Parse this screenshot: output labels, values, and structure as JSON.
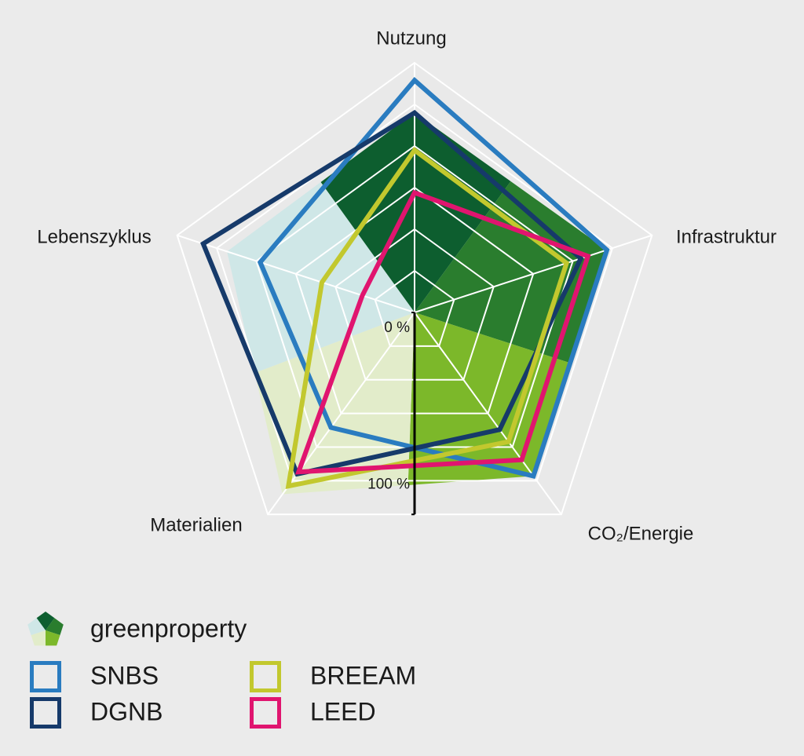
{
  "chart_data": {
    "type": "radar",
    "axes": [
      "Nutzung",
      "Infrastruktur",
      "CO₂/Energie",
      "Materialien",
      "Lebenszyklus"
    ],
    "ylim": [
      0,
      100
    ],
    "yticks": [
      {
        "value": 0,
        "label": "0 %"
      },
      {
        "value": 100,
        "label": "100 %"
      }
    ],
    "grid_rings": 6,
    "series": [
      {
        "name": "greenproperty",
        "fill": true,
        "colors": [
          "#0d5e2f",
          "#2a7d2e",
          "#7cb82a",
          "#e2ecca",
          "#cfe7e7"
        ],
        "values": [
          80,
          81,
          81,
          90,
          79
        ]
      },
      {
        "name": "SNBS",
        "color": "#2a7cc0",
        "values": [
          93,
          81,
          81,
          57,
          65
        ]
      },
      {
        "name": "DGNB",
        "color": "#163a6a",
        "values": [
          80,
          70,
          58,
          80,
          89
        ]
      },
      {
        "name": "BREEAM",
        "color": "#c2c82e",
        "values": [
          65,
          64,
          64,
          86,
          39
        ]
      },
      {
        "name": "LEED",
        "color": "#e0156f",
        "values": [
          48,
          73,
          73,
          79,
          22
        ]
      }
    ]
  }
}
